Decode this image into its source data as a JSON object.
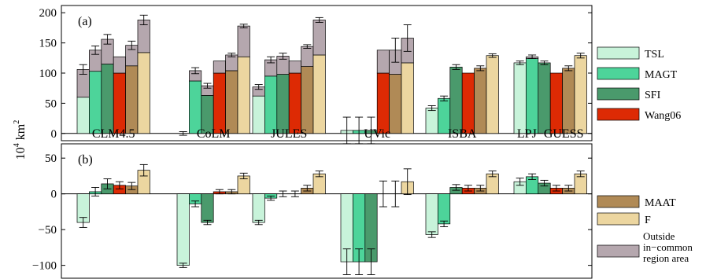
{
  "figure": {
    "ylabel": "10",
    "ylabel_sup": "4",
    "ylabel_unit": " km",
    "ylabel_unit_sup": "2"
  },
  "colors": {
    "TSL": "#c8f3da",
    "MAGT": "#4dd49a",
    "SFI": "#4a9a6c",
    "Wang06": "#dd2a04",
    "MAAT": "#b08a56",
    "F": "#ecd6a0",
    "Outside": "#b5a7ae"
  },
  "legend": {
    "top": [
      {
        "key": "TSL",
        "label": "TSL"
      },
      {
        "key": "MAGT",
        "label": "MAGT"
      },
      {
        "key": "SFI",
        "label": "SFI"
      },
      {
        "key": "Wang06",
        "label": "Wang06"
      }
    ],
    "bottom": [
      {
        "key": "MAAT",
        "label": "MAAT"
      },
      {
        "key": "F",
        "label": "F"
      },
      {
        "key": "Outside",
        "label": "Outside\nin−common\nregion area"
      }
    ]
  },
  "chart_data": [
    {
      "type": "bar",
      "panel_label": "(a)",
      "ylim": [
        -12,
        212
      ],
      "yticks": [
        0,
        50,
        100,
        150,
        200
      ],
      "categories": [
        "CLM4.5",
        "CoLM",
        "JULES",
        "UVic",
        "ISBA",
        "LPJ−GUESS"
      ],
      "bar_order": [
        "TSL",
        "MAGT",
        "SFI",
        "Wang06",
        "MAAT",
        "F"
      ],
      "series": [
        {
          "name": "TSL",
          "in_common": [
            60,
            0,
            62,
            5,
            42,
            117
          ],
          "total": [
            106,
            0,
            77,
            5,
            42,
            117
          ],
          "err": [
            8,
            3,
            4,
            22,
            4,
            3
          ]
        },
        {
          "name": "MAGT",
          "in_common": [
            103,
            87,
            95,
            5,
            58,
            124
          ],
          "total": [
            138,
            104,
            122,
            5,
            58,
            127
          ],
          "err": [
            7,
            5,
            5,
            22,
            4,
            3
          ]
        },
        {
          "name": "SFI",
          "in_common": [
            115,
            63,
            98,
            5,
            110,
            117
          ],
          "total": [
            156,
            79,
            128,
            5,
            110,
            117
          ],
          "err": [
            8,
            4,
            5,
            22,
            4,
            3
          ]
        },
        {
          "name": "Wang06",
          "in_common": [
            100,
            100,
            100,
            100,
            100,
            100
          ],
          "total": [
            127,
            120,
            120,
            138,
            100,
            100
          ],
          "err": [
            0,
            0,
            0,
            0,
            0,
            0
          ]
        },
        {
          "name": "MAAT",
          "in_common": [
            112,
            104,
            111,
            98,
            108,
            108
          ],
          "total": [
            146,
            130,
            144,
            138,
            108,
            108
          ],
          "err": [
            7,
            3,
            3,
            20,
            4,
            4
          ]
        },
        {
          "name": "F",
          "in_common": [
            134,
            127,
            130,
            117,
            129,
            129
          ],
          "total": [
            188,
            178,
            188,
            158,
            129,
            129
          ],
          "err": [
            8,
            3,
            4,
            22,
            3,
            4
          ]
        }
      ]
    },
    {
      "type": "bar",
      "panel_label": "(b)",
      "ylim": [
        -118,
        70
      ],
      "yticks": [
        -100,
        -50,
        0,
        50
      ],
      "categories": [
        "CLM4.5",
        "CoLM",
        "JULES",
        "UVic",
        "ISBA",
        "LPJ−GUESS"
      ],
      "bar_order": [
        "TSL",
        "MAGT",
        "SFI",
        "Wang06",
        "MAAT",
        "F"
      ],
      "series": [
        {
          "name": "TSL",
          "values": [
            -40,
            -100,
            -40,
            -95,
            -57,
            17
          ],
          "err": [
            7,
            3,
            3,
            18,
            4,
            5
          ]
        },
        {
          "name": "MAGT",
          "values": [
            3,
            -14,
            -6,
            -95,
            -42,
            24
          ],
          "err": [
            6,
            4,
            3,
            18,
            4,
            4
          ]
        },
        {
          "name": "SFI",
          "values": [
            14,
            -40,
            0,
            -95,
            9,
            15
          ],
          "err": [
            7,
            3,
            4,
            18,
            4,
            4
          ]
        },
        {
          "name": "Wang06",
          "values": [
            12,
            3,
            0,
            0,
            8,
            8
          ],
          "err": [
            5,
            3,
            4,
            18,
            4,
            4
          ]
        },
        {
          "name": "MAAT",
          "values": [
            11,
            3,
            8,
            0,
            8,
            8
          ],
          "err": [
            5,
            3,
            4,
            18,
            4,
            4
          ]
        },
        {
          "name": "F",
          "values": [
            33,
            25,
            28,
            17,
            28,
            28
          ],
          "err": [
            8,
            4,
            4,
            18,
            4,
            4
          ]
        }
      ]
    }
  ]
}
